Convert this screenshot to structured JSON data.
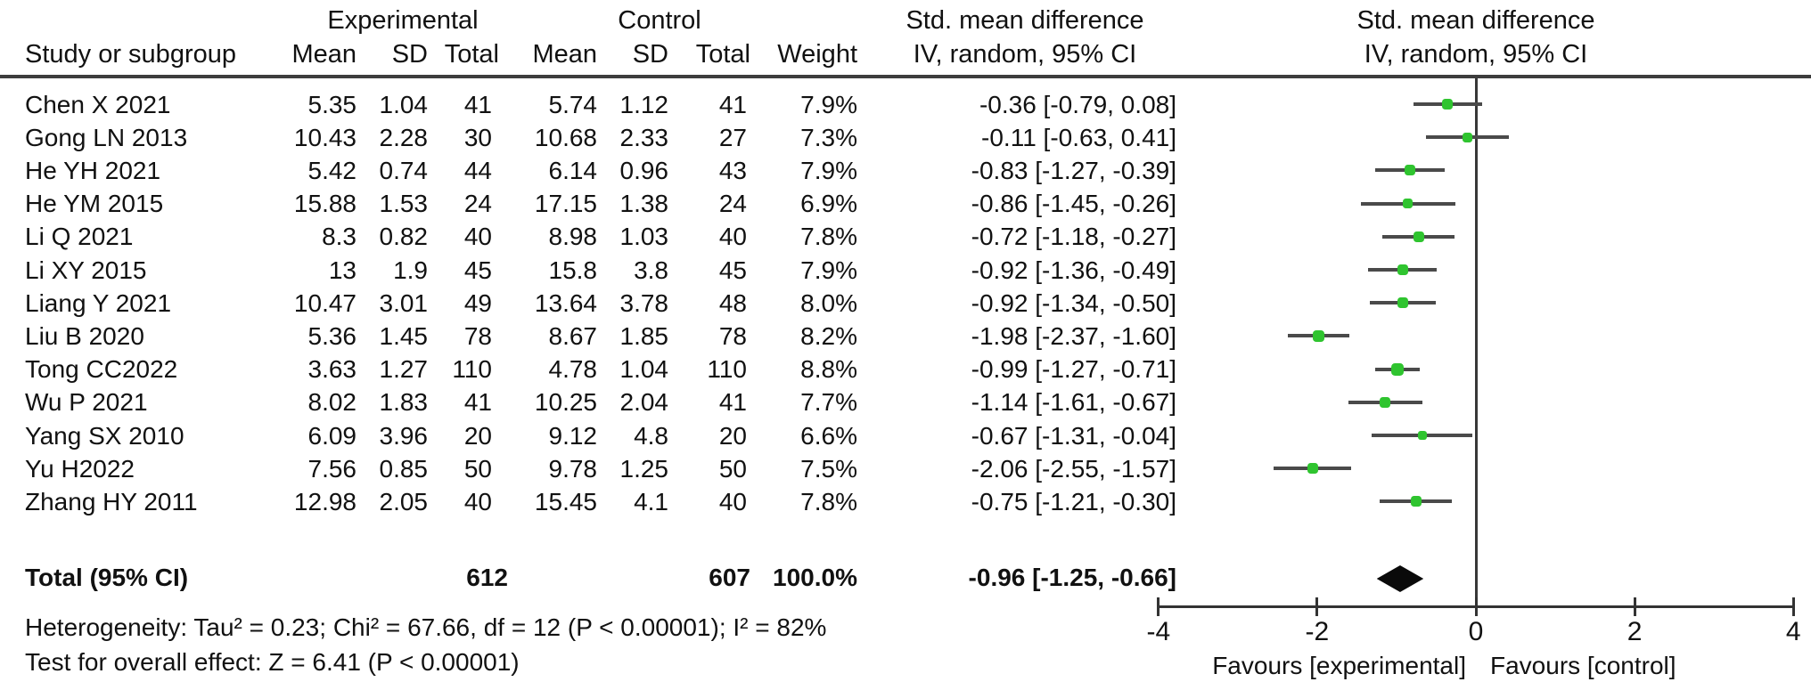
{
  "header": {
    "col_group_experimental": "Experimental",
    "col_group_control": "Control",
    "study_col": "Study or subgroup",
    "mean": "Mean",
    "sd": "SD",
    "total": "Total",
    "weight": "Weight",
    "smd_col_title_line1": "Std. mean difference",
    "smd_col_title_line2": "IV, random, 95% CI",
    "plot_title_line1": "Std. mean difference",
    "plot_title_line2": "IV, random, 95% CI"
  },
  "chart_data": {
    "type": "forest",
    "effect_measure": "Std. mean difference",
    "method": "IV, random, 95% CI",
    "x_axis": {
      "min": -4,
      "max": 4,
      "ticks": [
        -4,
        -2,
        0,
        2,
        4
      ]
    },
    "axis_labels": {
      "left": "Favours [experimental]",
      "right": "Favours [control]"
    },
    "marker_color": "#2fc42f",
    "line_color": "#4a4a4a",
    "diamond_color": "#0a0a0a",
    "studies": [
      {
        "study": "Chen X 2021",
        "exp_mean": "5.35",
        "exp_sd": "1.04",
        "exp_total": "41",
        "ctrl_mean": "5.74",
        "ctrl_sd": "1.12",
        "ctrl_total": "41",
        "weight": "7.9%",
        "ci_text": "-0.36 [-0.79, 0.08]",
        "smd": -0.36,
        "ci_low": -0.79,
        "ci_high": 0.08
      },
      {
        "study": "Gong LN 2013",
        "exp_mean": "10.43",
        "exp_sd": "2.28",
        "exp_total": "30",
        "ctrl_mean": "10.68",
        "ctrl_sd": "2.33",
        "ctrl_total": "27",
        "weight": "7.3%",
        "ci_text": "-0.11 [-0.63, 0.41]",
        "smd": -0.11,
        "ci_low": -0.63,
        "ci_high": 0.41
      },
      {
        "study": "He YH 2021",
        "exp_mean": "5.42",
        "exp_sd": "0.74",
        "exp_total": "44",
        "ctrl_mean": "6.14",
        "ctrl_sd": "0.96",
        "ctrl_total": "43",
        "weight": "7.9%",
        "ci_text": "-0.83 [-1.27, -0.39]",
        "smd": -0.83,
        "ci_low": -1.27,
        "ci_high": -0.39
      },
      {
        "study": "He YM 2015",
        "exp_mean": "15.88",
        "exp_sd": "1.53",
        "exp_total": "24",
        "ctrl_mean": "17.15",
        "ctrl_sd": "1.38",
        "ctrl_total": "24",
        "weight": "6.9%",
        "ci_text": "-0.86 [-1.45, -0.26]",
        "smd": -0.86,
        "ci_low": -1.45,
        "ci_high": -0.26
      },
      {
        "study": "Li Q 2021",
        "exp_mean": "8.3",
        "exp_sd": "0.82",
        "exp_total": "40",
        "ctrl_mean": "8.98",
        "ctrl_sd": "1.03",
        "ctrl_total": "40",
        "weight": "7.8%",
        "ci_text": "-0.72 [-1.18, -0.27]",
        "smd": -0.72,
        "ci_low": -1.18,
        "ci_high": -0.27
      },
      {
        "study": "Li XY 2015",
        "exp_mean": "13",
        "exp_sd": "1.9",
        "exp_total": "45",
        "ctrl_mean": "15.8",
        "ctrl_sd": "3.8",
        "ctrl_total": "45",
        "weight": "7.9%",
        "ci_text": "-0.92 [-1.36, -0.49]",
        "smd": -0.92,
        "ci_low": -1.36,
        "ci_high": -0.49
      },
      {
        "study": "Liang Y 2021",
        "exp_mean": "10.47",
        "exp_sd": "3.01",
        "exp_total": "49",
        "ctrl_mean": "13.64",
        "ctrl_sd": "3.78",
        "ctrl_total": "48",
        "weight": "8.0%",
        "ci_text": "-0.92 [-1.34, -0.50]",
        "smd": -0.92,
        "ci_low": -1.34,
        "ci_high": -0.5
      },
      {
        "study": "Liu B 2020",
        "exp_mean": "5.36",
        "exp_sd": "1.45",
        "exp_total": "78",
        "ctrl_mean": "8.67",
        "ctrl_sd": "1.85",
        "ctrl_total": "78",
        "weight": "8.2%",
        "ci_text": "-1.98 [-2.37, -1.60]",
        "smd": -1.98,
        "ci_low": -2.37,
        "ci_high": -1.6
      },
      {
        "study": "Tong CC2022",
        "exp_mean": "3.63",
        "exp_sd": "1.27",
        "exp_total": "110",
        "ctrl_mean": "4.78",
        "ctrl_sd": "1.04",
        "ctrl_total": "110",
        "weight": "8.8%",
        "ci_text": "-0.99 [-1.27, -0.71]",
        "smd": -0.99,
        "ci_low": -1.27,
        "ci_high": -0.71
      },
      {
        "study": "Wu P 2021",
        "exp_mean": "8.02",
        "exp_sd": "1.83",
        "exp_total": "41",
        "ctrl_mean": "10.25",
        "ctrl_sd": "2.04",
        "ctrl_total": "41",
        "weight": "7.7%",
        "ci_text": "-1.14 [-1.61, -0.67]",
        "smd": -1.14,
        "ci_low": -1.61,
        "ci_high": -0.67
      },
      {
        "study": "Yang SX 2010",
        "exp_mean": "6.09",
        "exp_sd": "3.96",
        "exp_total": "20",
        "ctrl_mean": "9.12",
        "ctrl_sd": "4.8",
        "ctrl_total": "20",
        "weight": "6.6%",
        "ci_text": "-0.67 [-1.31, -0.04]",
        "smd": -0.67,
        "ci_low": -1.31,
        "ci_high": -0.04
      },
      {
        "study": "Yu H2022",
        "exp_mean": "7.56",
        "exp_sd": "0.85",
        "exp_total": "50",
        "ctrl_mean": "9.78",
        "ctrl_sd": "1.25",
        "ctrl_total": "50",
        "weight": "7.5%",
        "ci_text": "-2.06 [-2.55, -1.57]",
        "smd": -2.06,
        "ci_low": -2.55,
        "ci_high": -1.57
      },
      {
        "study": "Zhang HY 2011",
        "exp_mean": "12.98",
        "exp_sd": "2.05",
        "exp_total": "40",
        "ctrl_mean": "15.45",
        "ctrl_sd": "4.1",
        "ctrl_total": "40",
        "weight": "7.8%",
        "ci_text": "-0.75 [-1.21, -0.30]",
        "smd": -0.75,
        "ci_low": -1.21,
        "ci_high": -0.3
      }
    ],
    "total": {
      "label": "Total (95% CI)",
      "exp_total": "612",
      "ctrl_total": "607",
      "weight": "100.0%",
      "ci_text": "-0.96 [-1.25, -0.66]",
      "smd": -0.96,
      "ci_low": -1.25,
      "ci_high": -0.66
    },
    "heterogeneity": "Heterogeneity: Tau² = 0.23; Chi² = 67.66, df = 12 (P < 0.00001); I² = 82%",
    "overall_effect": "Test for overall effect: Z = 6.41 (P < 0.00001)"
  }
}
